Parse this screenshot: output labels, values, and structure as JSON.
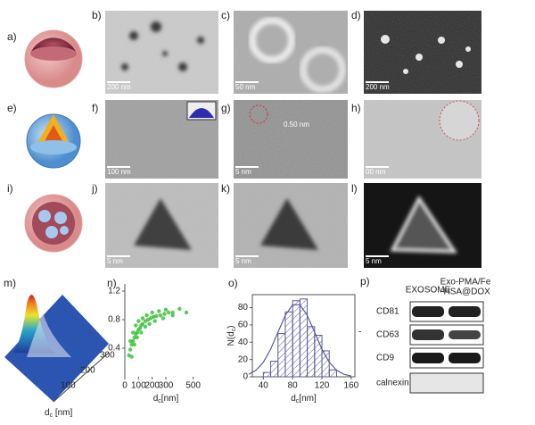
{
  "panel_labels": [
    "a)",
    "b)",
    "c)",
    "d)",
    "e)",
    "f)",
    "g)",
    "h)",
    "i)",
    "j)",
    "k)",
    "l)",
    "m)",
    "n)",
    "o)",
    "p)"
  ],
  "scale_bars": [
    "200 nm",
    "50 nm",
    "200 nm",
    "100 nm",
    "5 nm",
    "00 nm",
    "5 nm",
    "5 nm",
    "5 nm"
  ],
  "lattice_label": "0.50 nm",
  "surface_plot": {
    "xticks": [
      "100",
      "200",
      "300"
    ],
    "xlabel": {
      "main": "d",
      "sub": "c",
      "rest": " [nm]"
    }
  },
  "chart_data": [
    {
      "type": "scatter",
      "color": "#3cbf3c",
      "xlim": [
        0,
        600
      ],
      "ylim": [
        0,
        1.3
      ],
      "xticks": [
        0,
        100,
        200,
        300,
        500
      ],
      "yticks": [
        0.4,
        0.8,
        1.2
      ],
      "xlabel": {
        "main": "d",
        "sub": "c",
        "rest": "[nm]"
      },
      "x": [
        30,
        40,
        50,
        60,
        70,
        80,
        90,
        100,
        110,
        120,
        130,
        150,
        170,
        190,
        210,
        230,
        260,
        290,
        320,
        350,
        40,
        60,
        80,
        100,
        130,
        160,
        200,
        250,
        300,
        400,
        50,
        70,
        90,
        120,
        150,
        180,
        220,
        280,
        350,
        450
      ],
      "values": [
        0.3,
        0.38,
        0.45,
        0.5,
        0.55,
        0.6,
        0.62,
        0.66,
        0.68,
        0.72,
        0.74,
        0.78,
        0.8,
        0.82,
        0.84,
        0.85,
        0.86,
        0.88,
        0.9,
        0.9,
        0.5,
        0.62,
        0.72,
        0.78,
        0.82,
        0.86,
        0.9,
        0.92,
        0.94,
        0.95,
        0.28,
        0.45,
        0.55,
        0.62,
        0.7,
        0.74,
        0.78,
        0.82,
        0.86,
        0.9
      ]
    },
    {
      "type": "histogram",
      "color": "#5a5a9a",
      "xlim": [
        25,
        165
      ],
      "ylim": [
        0,
        95
      ],
      "xticks": [
        40,
        80,
        120,
        160
      ],
      "yticks": [
        0,
        20,
        40,
        60,
        80
      ],
      "ylabel": {
        "main": "N(d",
        "sub": "c",
        "rest": ")"
      },
      "xlabel": {
        "main": "d",
        "sub": "c",
        "rest": "[nm]"
      },
      "bins": [
        40,
        50,
        60,
        70,
        80,
        90,
        100,
        110,
        120,
        130,
        140
      ],
      "values": [
        5,
        18,
        50,
        75,
        88,
        90,
        58,
        48,
        30,
        8
      ],
      "fit": {
        "x": [
          20,
          30,
          40,
          50,
          60,
          70,
          80,
          90,
          100,
          110,
          120,
          130,
          140,
          150,
          160
        ],
        "values": [
          2.9,
          7.6,
          16.8,
          31.9,
          51.6,
          71,
          83.3,
          83.3,
          71,
          51.6,
          31.9,
          16.8,
          7.6,
          2.9,
          0.9
        ]
      }
    }
  ],
  "western_blot": {
    "columns": [
      "EXOSOME",
      "Exo-PMA/Fe",
      "-HSA@DOX"
    ],
    "rows": [
      "CD81",
      "CD63",
      "CD9",
      "calnexin"
    ],
    "side_mark": "-"
  }
}
